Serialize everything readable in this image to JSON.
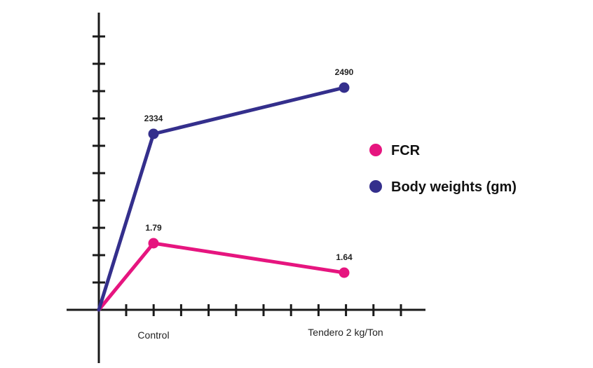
{
  "chart_data": {
    "type": "line",
    "title": "",
    "xlabel": "",
    "ylabel": "",
    "categories": [
      "Control",
      "Tendero 2 kg/Ton"
    ],
    "series": [
      {
        "name": "FCR",
        "color": "#e6157f",
        "values": [
          1.79,
          1.64
        ],
        "labels": [
          "1.79",
          "1.64"
        ]
      },
      {
        "name": "Body weights (gm)",
        "color": "#342f8c",
        "values": [
          2334,
          2490
        ],
        "labels": [
          "2334",
          "2490"
        ]
      }
    ],
    "legend_position": "right",
    "grid": false
  }
}
